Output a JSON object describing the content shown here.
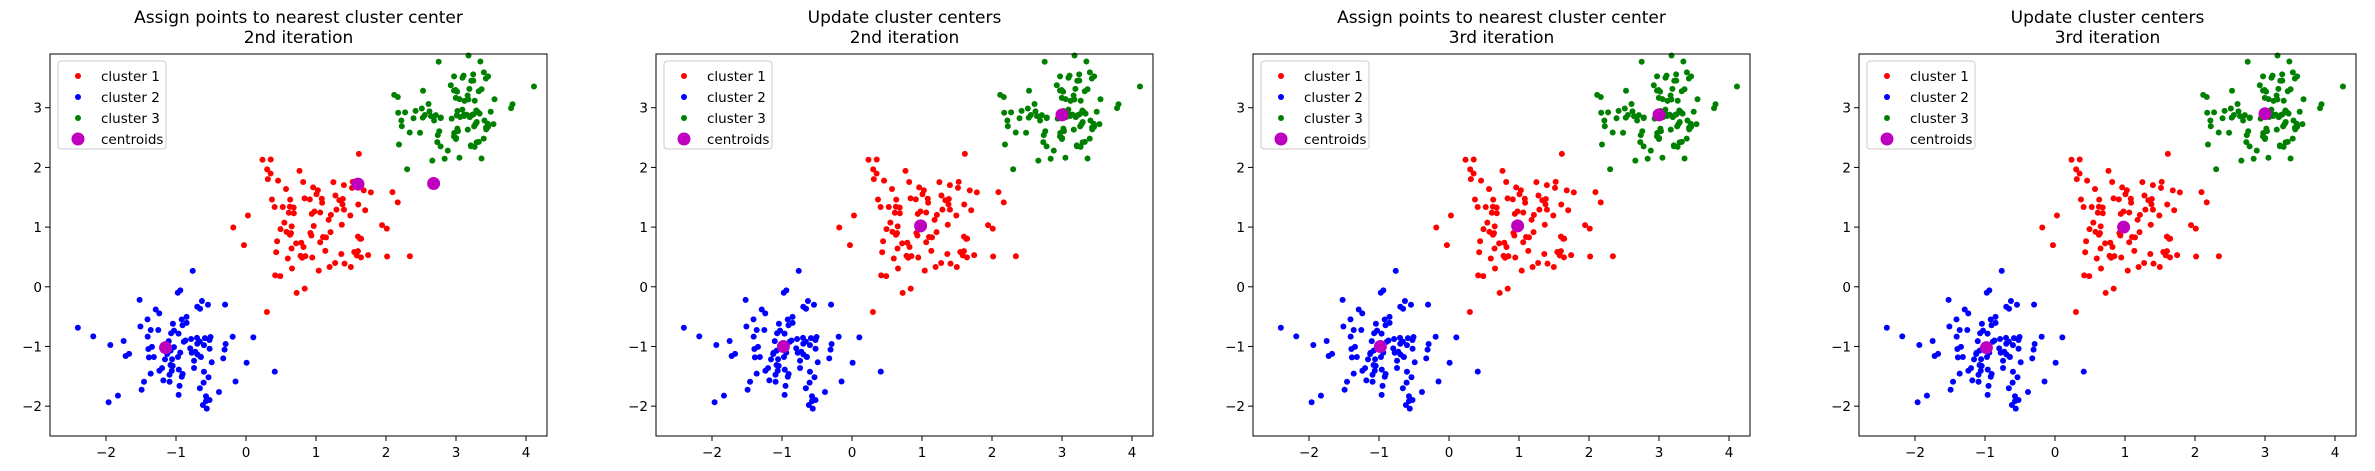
{
  "chart_data": [
    {
      "type": "scatter",
      "title": "Assign points to nearest cluster center\n2nd iteration",
      "xlim": [
        -2.8,
        4.3
      ],
      "ylim": [
        -2.5,
        3.9
      ],
      "xticks": [
        -2,
        -1,
        0,
        1,
        2,
        3,
        4
      ],
      "yticks": [
        -2,
        -1,
        0,
        1,
        2,
        3
      ],
      "legend": "upper-left",
      "series": [
        {
          "name": "cluster 1",
          "color": "#ff0000",
          "marker": "dot",
          "gen": {
            "cx": 1,
            "cy": 1,
            "sd": 0.5,
            "n": 100,
            "seed": 11
          }
        },
        {
          "name": "cluster 2",
          "color": "#0000ff",
          "marker": "dot",
          "gen": {
            "cx": -1,
            "cy": -1,
            "sd": 0.45,
            "n": 100,
            "seed": 22
          }
        },
        {
          "name": "cluster 3",
          "color": "#008000",
          "marker": "dot",
          "gen": {
            "cx": 3,
            "cy": 2.9,
            "sd": 0.4,
            "n": 100,
            "seed": 33
          }
        },
        {
          "name": "centroids",
          "color": "#bf00bf",
          "marker": "big",
          "points": [
            [
              -1.15,
              -1.02
            ],
            [
              1.6,
              1.72
            ],
            [
              2.68,
              1.73
            ]
          ]
        }
      ]
    },
    {
      "type": "scatter",
      "title": "Update cluster centers\n2nd iteration",
      "xlim": [
        -2.8,
        4.3
      ],
      "ylim": [
        -2.5,
        3.9
      ],
      "xticks": [
        -2,
        -1,
        0,
        1,
        2,
        3,
        4
      ],
      "yticks": [
        -2,
        -1,
        0,
        1,
        2,
        3
      ],
      "legend": "upper-left",
      "series": [
        {
          "name": "cluster 1",
          "color": "#ff0000",
          "marker": "dot",
          "gen": {
            "cx": 1,
            "cy": 1,
            "sd": 0.5,
            "n": 100,
            "seed": 11
          }
        },
        {
          "name": "cluster 2",
          "color": "#0000ff",
          "marker": "dot",
          "gen": {
            "cx": -1,
            "cy": -1,
            "sd": 0.45,
            "n": 100,
            "seed": 22
          }
        },
        {
          "name": "cluster 3",
          "color": "#008000",
          "marker": "dot",
          "gen": {
            "cx": 3,
            "cy": 2.9,
            "sd": 0.4,
            "n": 100,
            "seed": 33
          }
        },
        {
          "name": "centroids",
          "color": "#bf00bf",
          "marker": "big",
          "points": [
            [
              -0.98,
              -1.0
            ],
            [
              0.98,
              1.02
            ],
            [
              3.0,
              2.88
            ]
          ]
        }
      ]
    },
    {
      "type": "scatter",
      "title": "Assign points to nearest cluster center\n3rd iteration",
      "xlim": [
        -2.8,
        4.3
      ],
      "ylim": [
        -2.5,
        3.9
      ],
      "xticks": [
        -2,
        -1,
        0,
        1,
        2,
        3,
        4
      ],
      "yticks": [
        -2,
        -1,
        0,
        1,
        2,
        3
      ],
      "legend": "upper-left",
      "series": [
        {
          "name": "cluster 1",
          "color": "#ff0000",
          "marker": "dot",
          "gen": {
            "cx": 1,
            "cy": 1,
            "sd": 0.5,
            "n": 100,
            "seed": 11
          }
        },
        {
          "name": "cluster 2",
          "color": "#0000ff",
          "marker": "dot",
          "gen": {
            "cx": -1,
            "cy": -1,
            "sd": 0.45,
            "n": 100,
            "seed": 22
          }
        },
        {
          "name": "cluster 3",
          "color": "#008000",
          "marker": "dot",
          "gen": {
            "cx": 3,
            "cy": 2.9,
            "sd": 0.4,
            "n": 100,
            "seed": 33
          }
        },
        {
          "name": "centroids",
          "color": "#bf00bf",
          "marker": "big",
          "points": [
            [
              -0.98,
              -1.0
            ],
            [
              0.98,
              1.02
            ],
            [
              3.0,
              2.88
            ]
          ]
        }
      ]
    },
    {
      "type": "scatter",
      "title": "Update cluster centers\n3rd iteration",
      "xlim": [
        -2.8,
        4.3
      ],
      "ylim": [
        -2.5,
        3.9
      ],
      "xticks": [
        -2,
        -1,
        0,
        1,
        2,
        3,
        4
      ],
      "yticks": [
        -2,
        -1,
        0,
        1,
        2,
        3
      ],
      "legend": "upper-left",
      "series": [
        {
          "name": "cluster 1",
          "color": "#ff0000",
          "marker": "dot",
          "gen": {
            "cx": 1,
            "cy": 1,
            "sd": 0.5,
            "n": 100,
            "seed": 11
          }
        },
        {
          "name": "cluster 2",
          "color": "#0000ff",
          "marker": "dot",
          "gen": {
            "cx": -1,
            "cy": -1,
            "sd": 0.45,
            "n": 100,
            "seed": 22
          }
        },
        {
          "name": "cluster 3",
          "color": "#008000",
          "marker": "dot",
          "gen": {
            "cx": 3,
            "cy": 2.9,
            "sd": 0.4,
            "n": 100,
            "seed": 33
          }
        },
        {
          "name": "centroids",
          "color": "#bf00bf",
          "marker": "big",
          "points": [
            [
              -0.98,
              -1.02
            ],
            [
              0.98,
              1.0
            ],
            [
              3.0,
              2.9
            ]
          ]
        }
      ]
    }
  ]
}
